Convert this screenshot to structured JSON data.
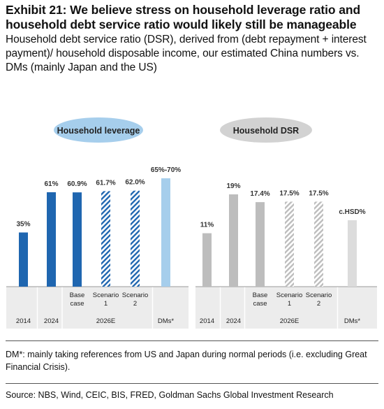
{
  "header": {
    "title": "Exhibit 21: We believe stress on household leverage ratio and household debt service ratio would likely still be manageable",
    "subtitle": "Household debt service ratio (DSR), derived from (debt repayment + interest payment)/ household disposable income, our estimated China numbers vs. DMs (mainly Japan and the US)"
  },
  "footer": {
    "note": "DM*: mainly taking references from US and Japan during normal periods (i.e. excluding Great Financial Crisis).",
    "source": "Source: NBS, Wind, CEIC, BIS, FRED, Goldman Sachs Global Investment Research"
  },
  "colors": {
    "leverage_solid": "#1F66B0",
    "leverage_light": "#A6CEEC",
    "leverage_pill": "#A6CEEC",
    "dsr_solid": "#BDBDBD",
    "dsr_light": "#DCDCDC",
    "dsr_pill": "#D2D2D2",
    "hatch_white": "#FFFFFF"
  },
  "chart_data": [
    {
      "type": "bar",
      "panel_label": "Household leverage",
      "categories": [
        "2014",
        "2024",
        "Base case",
        "Scenario 1",
        "Scenario 2",
        "DMs*"
      ],
      "category_labels": [
        [
          "2014"
        ],
        [
          "2024"
        ],
        [
          "Base",
          "case"
        ],
        [
          "Scenario",
          "1"
        ],
        [
          "Scenario",
          "2"
        ],
        [
          "DMs*"
        ]
      ],
      "group_label": "2026E",
      "values": [
        35,
        61,
        60.9,
        61.7,
        62.0,
        70
      ],
      "range_low": [
        null,
        null,
        null,
        null,
        null,
        65
      ],
      "data_labels": [
        "35%",
        "61%",
        "60.9%",
        "61.7%",
        "62.0%",
        "65%-70%"
      ],
      "styles": [
        "solid",
        "solid",
        "solid",
        "hatched",
        "hatched",
        "light"
      ],
      "ylim": [
        0,
        70
      ]
    },
    {
      "type": "bar",
      "panel_label": "Household DSR",
      "categories": [
        "2014",
        "2024",
        "Base case",
        "Scenario 1",
        "Scenario 2",
        "DMs*"
      ],
      "category_labels": [
        [
          "2014"
        ],
        [
          "2024"
        ],
        [
          "Base",
          "case"
        ],
        [
          "Scenario",
          "1"
        ],
        [
          "Scenario",
          "2"
        ],
        [
          "DMs*"
        ]
      ],
      "group_label": "2026E",
      "values": [
        11,
        19,
        17.4,
        17.5,
        17.5,
        null
      ],
      "data_labels": [
        "11%",
        "19%",
        "17.4%",
        "17.5%",
        "17.5%",
        "c.HSD%"
      ],
      "styles": [
        "solid",
        "solid",
        "solid",
        "hatched",
        "hatched",
        "light"
      ],
      "ylim": [
        0,
        21
      ]
    }
  ]
}
